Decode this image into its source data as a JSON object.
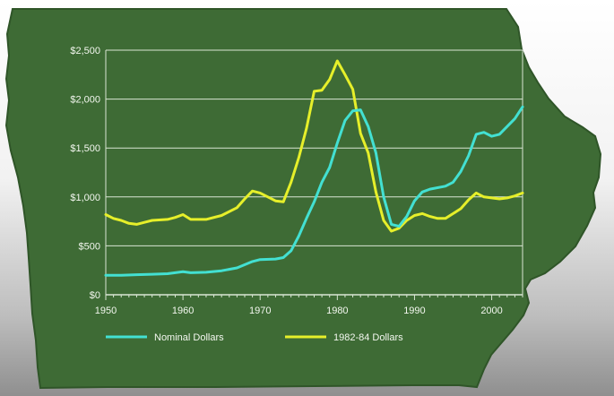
{
  "colors": {
    "map_fill": "#3e6b35",
    "map_edge": "#2f5528",
    "grid": "#d9e6d4",
    "axis_text": "#f3f7ef",
    "nominal": "#43e0d2",
    "real": "#e6ef2a"
  },
  "chart_data": {
    "type": "line",
    "title": "",
    "xlabel": "",
    "ylabel": "",
    "xlim": [
      1950,
      2004
    ],
    "ylim": [
      0,
      2500
    ],
    "grid": true,
    "legend_position": "bottom",
    "x_ticks": [
      {
        "value": 1950,
        "label": "1950"
      },
      {
        "value": 1960,
        "label": "1960"
      },
      {
        "value": 1970,
        "label": "1970"
      },
      {
        "value": 1980,
        "label": "1980"
      },
      {
        "value": 1990,
        "label": "1990"
      },
      {
        "value": 2000,
        "label": "2000"
      }
    ],
    "y_ticks": [
      {
        "value": 0,
        "label": "$0"
      },
      {
        "value": 500,
        "label": "$500"
      },
      {
        "value": 1000,
        "label": "$1,000"
      },
      {
        "value": 1500,
        "label": "$1,500"
      },
      {
        "value": 2000,
        "label": "$2,000"
      },
      {
        "value": 2500,
        "label": "$2,500"
      }
    ],
    "series": [
      {
        "name": "Nominal Dollars",
        "color": "#43e0d2",
        "points": [
          [
            1950,
            200
          ],
          [
            1952,
            200
          ],
          [
            1954,
            205
          ],
          [
            1956,
            210
          ],
          [
            1958,
            215
          ],
          [
            1960,
            235
          ],
          [
            1961,
            225
          ],
          [
            1963,
            230
          ],
          [
            1965,
            245
          ],
          [
            1967,
            275
          ],
          [
            1969,
            340
          ],
          [
            1970,
            360
          ],
          [
            1972,
            365
          ],
          [
            1973,
            380
          ],
          [
            1974,
            450
          ],
          [
            1975,
            600
          ],
          [
            1976,
            780
          ],
          [
            1977,
            950
          ],
          [
            1978,
            1150
          ],
          [
            1979,
            1300
          ],
          [
            1980,
            1550
          ],
          [
            1981,
            1780
          ],
          [
            1982,
            1880
          ],
          [
            1983,
            1890
          ],
          [
            1984,
            1720
          ],
          [
            1985,
            1450
          ],
          [
            1986,
            1000
          ],
          [
            1987,
            720
          ],
          [
            1988,
            700
          ],
          [
            1989,
            800
          ],
          [
            1990,
            960
          ],
          [
            1991,
            1050
          ],
          [
            1992,
            1080
          ],
          [
            1994,
            1110
          ],
          [
            1995,
            1150
          ],
          [
            1996,
            1260
          ],
          [
            1997,
            1420
          ],
          [
            1998,
            1640
          ],
          [
            1999,
            1660
          ],
          [
            2000,
            1620
          ],
          [
            2001,
            1640
          ],
          [
            2002,
            1720
          ],
          [
            2003,
            1800
          ],
          [
            2004,
            1920
          ]
        ]
      },
      {
        "name": "1982-84 Dollars",
        "color": "#e6ef2a",
        "points": [
          [
            1950,
            820
          ],
          [
            1951,
            780
          ],
          [
            1952,
            760
          ],
          [
            1953,
            730
          ],
          [
            1954,
            720
          ],
          [
            1955,
            740
          ],
          [
            1956,
            760
          ],
          [
            1958,
            770
          ],
          [
            1959,
            790
          ],
          [
            1960,
            820
          ],
          [
            1961,
            770
          ],
          [
            1963,
            770
          ],
          [
            1965,
            810
          ],
          [
            1967,
            890
          ],
          [
            1968,
            980
          ],
          [
            1969,
            1060
          ],
          [
            1970,
            1040
          ],
          [
            1971,
            1000
          ],
          [
            1972,
            960
          ],
          [
            1973,
            950
          ],
          [
            1974,
            1150
          ],
          [
            1975,
            1400
          ],
          [
            1976,
            1700
          ],
          [
            1977,
            2080
          ],
          [
            1978,
            2090
          ],
          [
            1979,
            2200
          ],
          [
            1980,
            2390
          ],
          [
            1981,
            2250
          ],
          [
            1982,
            2100
          ],
          [
            1983,
            1650
          ],
          [
            1984,
            1450
          ],
          [
            1985,
            1050
          ],
          [
            1986,
            760
          ],
          [
            1987,
            650
          ],
          [
            1988,
            680
          ],
          [
            1989,
            760
          ],
          [
            1990,
            810
          ],
          [
            1991,
            830
          ],
          [
            1992,
            800
          ],
          [
            1993,
            780
          ],
          [
            1994,
            780
          ],
          [
            1995,
            830
          ],
          [
            1996,
            880
          ],
          [
            1997,
            970
          ],
          [
            1998,
            1040
          ],
          [
            1999,
            1000
          ],
          [
            2000,
            990
          ],
          [
            2001,
            980
          ],
          [
            2002,
            990
          ],
          [
            2003,
            1010
          ],
          [
            2004,
            1040
          ]
        ]
      }
    ]
  }
}
